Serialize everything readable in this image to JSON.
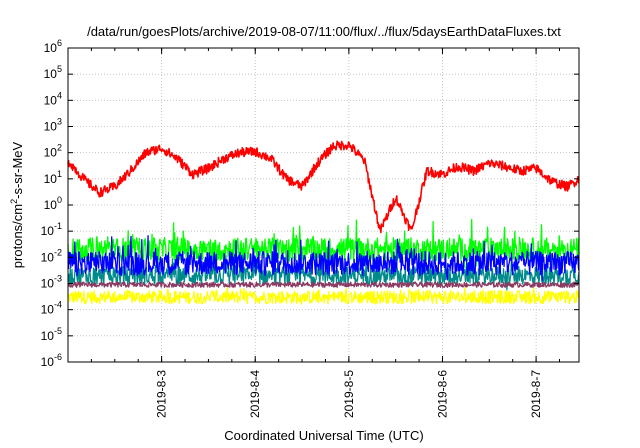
{
  "chart_data": {
    "type": "line",
    "title": "/data/run/goesPlots/archive/2019-08-07/11:00/flux/../flux/5daysEarthDataFluxes.txt",
    "xlabel": "Coordinated Universal Time (UTC)",
    "ylabel": "protons/cm2-s-sr-MeV",
    "ylabel_parts": {
      "base": "protons/cm",
      "sup": "2",
      "rest": "-s-sr-MeV"
    },
    "y_scale": "log",
    "ylim": [
      1e-06,
      1000000.0
    ],
    "xlim": [
      "2019-08-02T00:00",
      "2019-08-07T11:00"
    ],
    "grid": true,
    "legend": "none",
    "y_ticks": [
      {
        "value": 1e-06,
        "base": "10",
        "exp": "-6"
      },
      {
        "value": 1e-05,
        "base": "10",
        "exp": "-5"
      },
      {
        "value": 0.0001,
        "base": "10",
        "exp": "-4"
      },
      {
        "value": 0.001,
        "base": "10",
        "exp": "-3"
      },
      {
        "value": 0.01,
        "base": "10",
        "exp": "-2"
      },
      {
        "value": 0.1,
        "base": "10",
        "exp": "-1"
      },
      {
        "value": 1,
        "base": "10",
        "exp": "0"
      },
      {
        "value": 10,
        "base": "10",
        "exp": "1"
      },
      {
        "value": 100,
        "base": "10",
        "exp": "2"
      },
      {
        "value": 1000,
        "base": "10",
        "exp": "3"
      },
      {
        "value": 10000,
        "base": "10",
        "exp": "4"
      },
      {
        "value": 100000,
        "base": "10",
        "exp": "5"
      },
      {
        "value": 1000000,
        "base": "10",
        "exp": "6"
      }
    ],
    "x_ticks": [
      {
        "value": "2019-08-03T00:00",
        "label": "2019-8-3"
      },
      {
        "value": "2019-08-04T00:00",
        "label": "2019-8-4"
      },
      {
        "value": "2019-08-05T00:00",
        "label": "2019-8-5"
      },
      {
        "value": "2019-08-06T00:00",
        "label": "2019-8-6"
      },
      {
        "value": "2019-08-07T00:00",
        "label": "2019-8-7"
      }
    ],
    "series": [
      {
        "color": "#ffff00",
        "x": [
          "2019-08-02T00:00",
          "2019-08-03T00:00",
          "2019-08-04T00:00",
          "2019-08-05T00:00",
          "2019-08-06T00:00",
          "2019-08-07T00:00",
          "2019-08-07T11:00"
        ],
        "y": [
          0.0003,
          0.0003,
          0.0003,
          0.0003,
          0.0003,
          0.0003,
          0.0003
        ],
        "noise": 0.25,
        "spikes": 0.12
      },
      {
        "color": "#008b8b",
        "x": [
          "2019-08-02T00:00",
          "2019-08-03T00:00",
          "2019-08-04T00:00",
          "2019-08-05T00:00",
          "2019-08-06T00:00",
          "2019-08-07T00:00",
          "2019-08-07T11:00"
        ],
        "y": [
          0.002,
          0.002,
          0.002,
          0.002,
          0.002,
          0.002,
          0.002
        ],
        "noise": 0.35,
        "spikes": 0.45
      },
      {
        "color": "#00ff00",
        "x": [
          "2019-08-02T00:00",
          "2019-08-03T00:00",
          "2019-08-04T00:00",
          "2019-08-05T00:00",
          "2019-08-06T00:00",
          "2019-08-07T00:00",
          "2019-08-07T11:00"
        ],
        "y": [
          0.02,
          0.02,
          0.02,
          0.02,
          0.02,
          0.02,
          0.02
        ],
        "noise": 0.45,
        "spikes": 0.55
      },
      {
        "color": "#0000ff",
        "x": [
          "2019-08-02T00:00",
          "2019-08-03T00:00",
          "2019-08-04T00:00",
          "2019-08-05T00:00",
          "2019-08-06T00:00",
          "2019-08-07T00:00",
          "2019-08-07T11:00"
        ],
        "y": [
          0.006,
          0.006,
          0.006,
          0.006,
          0.006,
          0.006,
          0.006
        ],
        "noise": 0.45,
        "spikes": 0.5
      },
      {
        "color": "#8b3a62",
        "x": [
          "2019-08-02T00:00",
          "2019-08-03T00:00",
          "2019-08-04T00:00",
          "2019-08-05T00:00",
          "2019-08-06T00:00",
          "2019-08-07T00:00",
          "2019-08-07T11:00"
        ],
        "y": [
          0.0009,
          0.0009,
          0.0009,
          0.0009,
          0.0009,
          0.0009,
          0.0009
        ],
        "noise": 0.1,
        "spikes": 0.0
      },
      {
        "color": "#ff0000",
        "x": [
          "2019-08-02T00:00",
          "2019-08-02T04:00",
          "2019-08-02T08:00",
          "2019-08-02T12:00",
          "2019-08-02T16:00",
          "2019-08-02T20:00",
          "2019-08-03T00:00",
          "2019-08-03T04:00",
          "2019-08-03T08:00",
          "2019-08-03T12:00",
          "2019-08-03T16:00",
          "2019-08-03T20:00",
          "2019-08-04T00:00",
          "2019-08-04T04:00",
          "2019-08-04T08:00",
          "2019-08-04T12:00",
          "2019-08-04T16:00",
          "2019-08-04T20:00",
          "2019-08-05T00:00",
          "2019-08-05T04:00",
          "2019-08-05T08:00",
          "2019-08-05T12:00",
          "2019-08-05T16:00",
          "2019-08-05T20:00",
          "2019-08-06T00:00",
          "2019-08-06T04:00",
          "2019-08-06T08:00",
          "2019-08-06T12:00",
          "2019-08-06T16:00",
          "2019-08-06T20:00",
          "2019-08-07T00:00",
          "2019-08-07T04:00",
          "2019-08-07T08:00",
          "2019-08-07T11:00"
        ],
        "y": [
          50,
          10,
          3,
          5,
          20,
          100,
          150,
          60,
          15,
          25,
          60,
          100,
          110,
          60,
          10,
          5,
          40,
          180,
          200,
          50,
          0.1,
          2,
          0.1,
          20,
          15,
          30,
          20,
          40,
          30,
          20,
          25,
          8,
          5,
          10
        ],
        "noise": 0.18,
        "spikes": 0.0
      }
    ]
  }
}
